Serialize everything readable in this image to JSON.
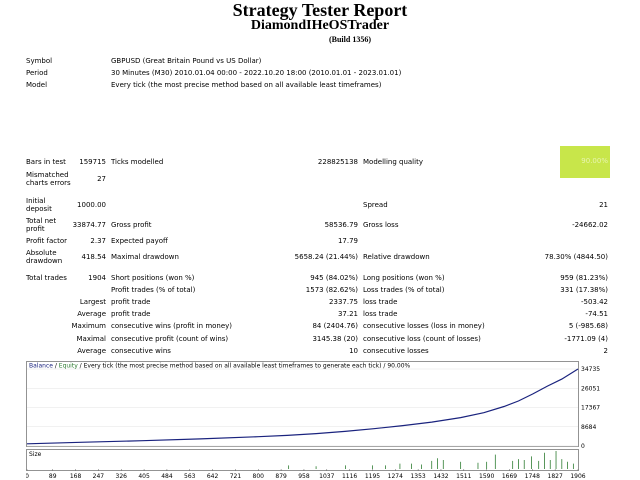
{
  "header": {
    "title": "Strategy Tester Report",
    "expert": "DiamondIHeOSTrader",
    "build": "(Build 1356)"
  },
  "info": {
    "symbol_label": "Symbol",
    "symbol_value": "GBPUSD (Great Britain Pound vs US Dollar)",
    "period_label": "Period",
    "period_value": "30 Minutes (M30) 2010.01.04 00:00 - 2022.10.20 18:00 (2010.01.01 - 2023.01.01)",
    "model_label": "Model",
    "model_value": "Every tick (the most precise method based on all available least timeframes)"
  },
  "stats": {
    "bars_label": "Bars in test",
    "bars_value": "159715",
    "ticks_label": "Ticks modelled",
    "ticks_value": "228825138",
    "quality_label": "Modelling quality",
    "quality_value": "90.00%",
    "mismatch_label_1": "Mismatched",
    "mismatch_label_2": "charts errors",
    "mismatch_value": "27",
    "deposit_label_1": "Initial",
    "deposit_label_2": "deposit",
    "deposit_value": "1000.00",
    "spread_label": "Spread",
    "spread_value": "21",
    "netprofit_label_1": "Total net",
    "netprofit_label_2": "profit",
    "netprofit_value": "33874.77",
    "grossprofit_label": "Gross profit",
    "grossprofit_value": "58536.79",
    "grossloss_label": "Gross loss",
    "grossloss_value": "-24662.02",
    "pf_label": "Profit factor",
    "pf_value": "2.37",
    "payoff_label": "Expected payoff",
    "payoff_value": "17.79",
    "absdd_label_1": "Absolute",
    "absdd_label_2": "drawdown",
    "absdd_value": "418.54",
    "maxdd_label": "Maximal drawdown",
    "maxdd_value": "5658.24 (21.44%)",
    "reldd_label": "Relative drawdown",
    "reldd_value": "78.30% (4844.50)",
    "trades_label": "Total trades",
    "trades_value": "1904",
    "short_label": "Short positions (won %)",
    "short_value": "945 (84.02%)",
    "long_label": "Long positions (won %)",
    "long_value": "959 (81.23%)",
    "ptrades_label": "Profit trades (% of total)",
    "ptrades_value": "1573 (82.62%)",
    "ltrades_label": "Loss trades (% of total)",
    "ltrades_value": "331 (17.38%)",
    "largest_label": "Largest",
    "largest_profit_label": "profit trade",
    "largest_profit_value": "2337.75",
    "largest_loss_label": "loss trade",
    "largest_loss_value": "-503.42",
    "average_label": "Average",
    "average_profit_label": "profit trade",
    "average_profit_value": "37.21",
    "average_loss_label": "loss trade",
    "average_loss_value": "-74.51",
    "maximum_label": "Maximum",
    "maxwins_label": "consecutive wins (profit in money)",
    "maxwins_value": "84 (2404.76)",
    "maxlosses_label": "consecutive losses (loss in money)",
    "maxlosses_value": "5 (-985.68)",
    "maximal_label": "Maximal",
    "maximalwins_label": "consecutive profit (count of wins)",
    "maximalwins_value": "3145.38 (20)",
    "maximallosses_label": "consecutive loss (count of losses)",
    "maximallosses_value": "-1771.09 (4)",
    "avgcons_label": "Average",
    "avgwins_label": "consecutive wins",
    "avgwins_value": "10",
    "avglosses_label": "consecutive losses",
    "avglosses_value": "2"
  },
  "chart_data": {
    "type": "line",
    "legend": {
      "balance": "Balance",
      "sep1": " / ",
      "equity": "Equity",
      "rest": " / Every tick (the most precise method based on all available least timeframes to generate each tick) / 90.00%"
    },
    "y_ticks": [
      "34735",
      "26051",
      "17367",
      "8684",
      "0"
    ],
    "ylim": [
      0,
      34735
    ],
    "x_ticks": [
      "0",
      "89",
      "168",
      "247",
      "326",
      "405",
      "484",
      "563",
      "642",
      "721",
      "800",
      "879",
      "958",
      "1037",
      "1116",
      "1195",
      "1274",
      "1353",
      "1432",
      "1511",
      "1590",
      "1669",
      "1748",
      "1827",
      "1906"
    ],
    "xlim": [
      0,
      1906
    ],
    "size_label": "Size",
    "balance_color": "#1a237e",
    "equity_color": "#2e7d32",
    "series": [
      {
        "name": "Balance",
        "x": [
          0,
          200,
          400,
          600,
          800,
          900,
          1000,
          1100,
          1200,
          1300,
          1400,
          1500,
          1580,
          1650,
          1700,
          1750,
          1800,
          1850,
          1906
        ],
        "y": [
          1000,
          1700,
          2400,
          3200,
          4200,
          4800,
          5600,
          6600,
          7800,
          9200,
          10800,
          12800,
          15000,
          17800,
          20300,
          23500,
          27000,
          30200,
          34735
        ]
      }
    ],
    "size_bars": {
      "x": [
        905,
        1000,
        1102,
        1195,
        1240,
        1290,
        1330,
        1365,
        1400,
        1420,
        1440,
        1500,
        1560,
        1590,
        1620,
        1680,
        1700,
        1720,
        1745,
        1770,
        1790,
        1810,
        1830,
        1850,
        1870,
        1890
      ],
      "y": [
        0.2,
        0.15,
        0.2,
        0.2,
        0.2,
        0.3,
        0.3,
        0.25,
        0.45,
        0.6,
        0.5,
        0.4,
        0.35,
        0.4,
        0.8,
        0.45,
        0.55,
        0.5,
        0.7,
        0.45,
        0.9,
        0.5,
        1.0,
        0.55,
        0.4,
        0.3
      ]
    }
  }
}
